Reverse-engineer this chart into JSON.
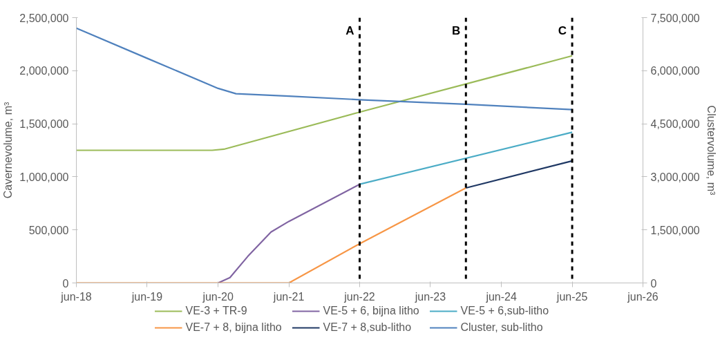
{
  "chart_data": {
    "type": "line",
    "xlim": [
      "2018-06",
      "2026-06"
    ],
    "xticks": [
      {
        "value": "2018-06",
        "label": "jun-18"
      },
      {
        "value": "2019-06",
        "label": "jun-19"
      },
      {
        "value": "2020-06",
        "label": "jun-20"
      },
      {
        "value": "2021-06",
        "label": "jun-21"
      },
      {
        "value": "2022-06",
        "label": "jun-22"
      },
      {
        "value": "2023-06",
        "label": "jun-23"
      },
      {
        "value": "2024-06",
        "label": "jun-24"
      },
      {
        "value": "2025-06",
        "label": "jun-25"
      },
      {
        "value": "2026-06",
        "label": "jun-26"
      }
    ],
    "ylabel": "Cavernevolume, m³",
    "y2label": "Clustervolume, m³",
    "ylim": [
      0,
      2500000
    ],
    "yticks": [
      0,
      {
        "value": 500000,
        "label": "500,000"
      },
      {
        "value": 1000000,
        "label": "1,000,000"
      },
      {
        "value": 1500000,
        "label": "1,500,000"
      },
      {
        "value": 2000000,
        "label": "2,000,000"
      },
      {
        "value": 2500000,
        "label": "2,500,000"
      }
    ],
    "y2lim": [
      0,
      7500000
    ],
    "y2ticks": [
      0,
      {
        "value": 1500000,
        "label": "1,500,000"
      },
      {
        "value": 3000000,
        "label": "3,000,000"
      },
      {
        "value": 4500000,
        "label": "4,500,000"
      },
      {
        "value": 6000000,
        "label": "6,000,000"
      },
      {
        "value": 7500000,
        "label": "7,500,000"
      }
    ],
    "grid": false,
    "legend": "bottom",
    "marker": "none",
    "line_style": "solid",
    "series": [
      {
        "name": "VE-3 + TR-9",
        "color": "#9bbb59",
        "x": [
          "2018-06",
          "2020-05",
          "2020-07",
          "2022-06",
          "2025-06"
        ],
        "values": [
          1250000,
          1250000,
          1260000,
          1610000,
          2140000
        ]
      },
      {
        "name": "VE-5 + 6, bijna litho",
        "color": "#8064a2",
        "x": [
          "2020-06",
          "2020-08",
          "2020-11",
          "2021-03",
          "2021-06",
          "2022-06"
        ],
        "values": [
          0,
          50000,
          250000,
          480000,
          580000,
          930000
        ]
      },
      {
        "name": "VE-5 + 6,sub-litho",
        "color": "#4bacc6",
        "x": [
          "2022-06",
          "2025-06"
        ],
        "values": [
          930000,
          1420000
        ]
      },
      {
        "name": "VE-7 + 8, bijna litho",
        "color": "#f79646",
        "x": [
          "2018-06",
          "2021-06",
          "2022-06",
          "2023-12"
        ],
        "values": [
          0,
          0,
          370000,
          895000
        ]
      },
      {
        "name": "VE-7 + 8,sub-litho",
        "color": "#1f3864",
        "x": [
          "2023-12",
          "2025-06"
        ],
        "values": [
          895000,
          1150000
        ]
      },
      {
        "name": "Cluster, sub-litho",
        "color": "#4f81bd",
        "axis": "y2",
        "x": [
          "2018-06",
          "2019-06",
          "2020-06",
          "2020-09",
          "2021-06",
          "2022-06",
          "2023-12",
          "2025-06"
        ],
        "values": [
          7200000,
          6350000,
          5500000,
          5350000,
          5280000,
          5180000,
          5050000,
          4900000
        ]
      }
    ],
    "ref_lines": [
      {
        "axis": "x",
        "value": "2022-06",
        "label": "A",
        "color": "#000000",
        "line_style": "dashed"
      },
      {
        "axis": "x",
        "value": "2023-12",
        "label": "B",
        "color": "#000000",
        "line_style": "dashed"
      },
      {
        "axis": "x",
        "value": "2025-06",
        "label": "C",
        "color": "#000000",
        "line_style": "dashed"
      }
    ]
  }
}
